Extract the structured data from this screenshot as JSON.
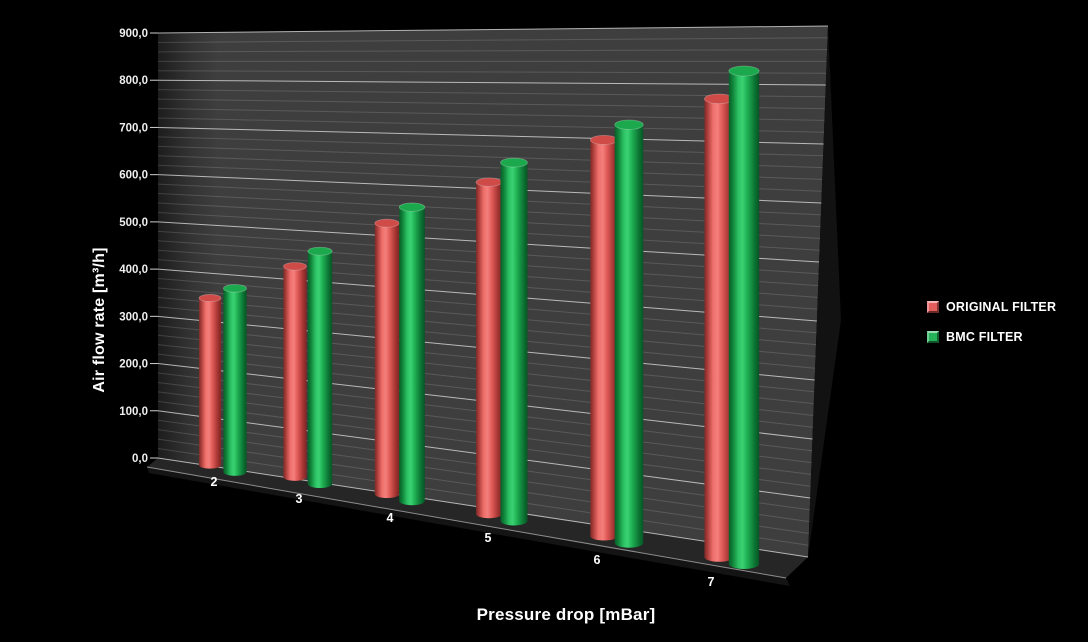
{
  "chart_data": {
    "type": "bar",
    "variant": "3d-cylinder-clustered",
    "title": "",
    "xlabel": "Pressure drop [mBar]",
    "ylabel": "Air flow rate [m³/h]",
    "categories": [
      "2",
      "3",
      "4",
      "5",
      "6",
      "7"
    ],
    "series": [
      {
        "name": "ORIGINAL FILTER",
        "color": "#e25d5b",
        "values": [
          350,
          430,
          530,
          625,
          715,
          790
        ]
      },
      {
        "name": "BMC FILTER",
        "color": "#25b258",
        "values": [
          385,
          475,
          575,
          675,
          755,
          850
        ]
      }
    ],
    "ylim": [
      0,
      900
    ],
    "y_major_step": 100,
    "y_minor_step": 20,
    "y_tick_labels": [
      "0,0",
      "100,0",
      "200,0",
      "300,0",
      "400,0",
      "500,0",
      "600,0",
      "700,0",
      "800,0",
      "900,0"
    ],
    "grid": true,
    "legend_position": "right",
    "colors": {
      "background": "#000000",
      "wall": "#3e3e3e",
      "wall_shadow_left": "#1f1f1f",
      "floor": "#262626",
      "major_gridline": "#d8d8d8",
      "minor_gridline": "#ffffff",
      "tick_text": "#eeeeee",
      "label_text": "#ffffff"
    }
  },
  "legend": {
    "items": [
      {
        "label": "ORIGINAL FILTER",
        "swatch": "red-3d-square"
      },
      {
        "label": "BMC FILTER",
        "swatch": "green-3d-square"
      }
    ]
  }
}
